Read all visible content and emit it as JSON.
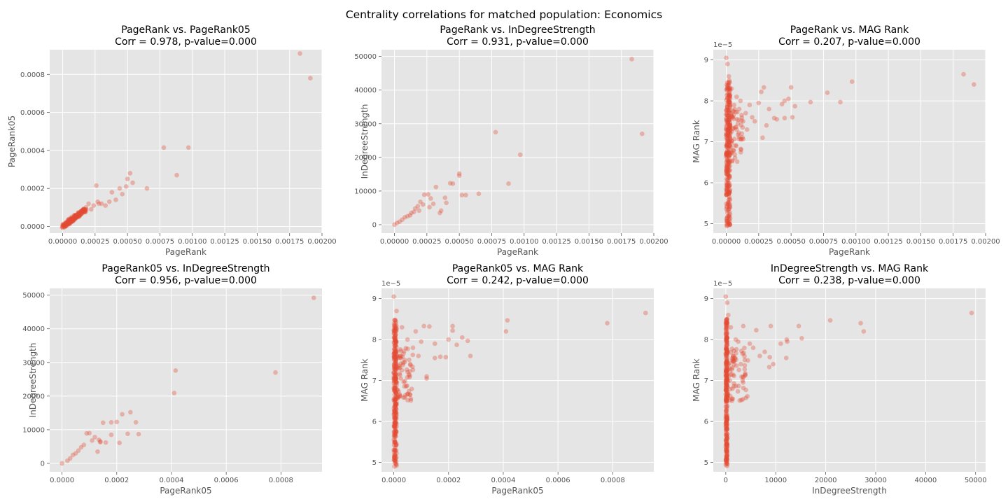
{
  "figure": {
    "title": "Centrality correlations for matched population: Economics"
  },
  "colors": {
    "point": "#e24a33",
    "background": "#e5e5e5",
    "grid": "#ffffff"
  },
  "chart_data": [
    {
      "type": "scatter",
      "title_line1": "PageRank vs. PageRank05",
      "title_line2": "Corr = 0.978, p-value=0.000",
      "xlabel": "PageRank",
      "ylabel": "PageRank05",
      "xlim": [
        -0.0001,
        0.002
      ],
      "ylim": [
        -3.5e-05,
        0.00093
      ],
      "xticks": [
        0,
        0.00025,
        0.0005,
        0.00075,
        0.001,
        0.00125,
        0.0015,
        0.00175,
        0.002
      ],
      "xtick_labels": [
        "0.00000",
        "0.00025",
        "0.00050",
        "0.00075",
        "0.00100",
        "0.00125",
        "0.00150",
        "0.00175",
        "0.00200"
      ],
      "yticks": [
        0,
        0.0002,
        0.0004,
        0.0006,
        0.0008
      ],
      "ytick_labels": [
        "0.0000",
        "0.0002",
        "0.0004",
        "0.0006",
        "0.0008"
      ],
      "y_offset_label": "",
      "points": [
        [
          0.00183,
          0.00091
        ],
        [
          0.00191,
          0.00078
        ],
        [
          0.00078,
          0.000415
        ],
        [
          0.00097,
          0.000415
        ],
        [
          0.00088,
          0.00027
        ],
        [
          0.00065,
          0.0002
        ],
        [
          0.00052,
          0.00028
        ],
        [
          0.00054,
          0.00023
        ],
        [
          0.0005,
          0.00025
        ],
        [
          0.00049,
          0.00021
        ],
        [
          0.00046,
          0.00017
        ],
        [
          0.00044,
          0.0002
        ],
        [
          0.00041,
          0.00014
        ],
        [
          0.00038,
          0.00018
        ],
        [
          0.00036,
          0.00013
        ],
        [
          0.00033,
          0.00011
        ],
        [
          0.0003,
          0.00012
        ],
        [
          0.00026,
          0.000215
        ],
        [
          0.00027,
          0.00013
        ],
        [
          0.00028,
          0.00012
        ],
        [
          0.00024,
          0.00011
        ],
        [
          0.00022,
          9e-05
        ],
        [
          0.0002,
          0.00012
        ],
        [
          0.00018,
          0.0001
        ],
        [
          0.00016,
          9e-05
        ],
        [
          0.00015,
          7e-05
        ],
        [
          0.00014,
          8e-05
        ],
        [
          0.00013,
          6e-05
        ],
        [
          0.00012,
          7e-05
        ],
        [
          0.0001,
          5e-05
        ],
        [
          9e-05,
          6e-05
        ],
        [
          8e-05,
          4e-05
        ],
        [
          7e-05,
          5e-05
        ],
        [
          6e-05,
          3e-05
        ],
        [
          5e-05,
          4e-05
        ],
        [
          4e-05,
          2e-05
        ],
        [
          3e-05,
          2e-05
        ],
        [
          2e-05,
          1e-05
        ],
        [
          1e-05,
          5e-06
        ],
        [
          0,
          0
        ]
      ],
      "cluster": {
        "x0": 0,
        "x1": 0.00018,
        "y0": 0,
        "y1": 9e-05,
        "spread": 1.2e-05,
        "n": 150
      }
    },
    {
      "type": "scatter",
      "title_line1": "PageRank vs. InDegreeStrength",
      "title_line2": "Corr = 0.931, p-value=0.000",
      "xlabel": "PageRank",
      "ylabel": "InDegreeStrength",
      "xlim": [
        -0.0001,
        0.002
      ],
      "ylim": [
        -2500,
        52000
      ],
      "xticks": [
        0,
        0.00025,
        0.0005,
        0.00075,
        0.001,
        0.00125,
        0.0015,
        0.00175,
        0.002
      ],
      "xtick_labels": [
        "0.00000",
        "0.00025",
        "0.00050",
        "0.00075",
        "0.00100",
        "0.00125",
        "0.00150",
        "0.00175",
        "0.00200"
      ],
      "yticks": [
        0,
        10000,
        20000,
        30000,
        40000,
        50000
      ],
      "ytick_labels": [
        "0",
        "10000",
        "20000",
        "30000",
        "40000",
        "50000"
      ],
      "y_offset_label": "",
      "points": [
        [
          0.00183,
          49200
        ],
        [
          0.00191,
          27000
        ],
        [
          0.00078,
          27500
        ],
        [
          0.00097,
          20800
        ],
        [
          0.00088,
          12200
        ],
        [
          0.00065,
          9200
        ],
        [
          0.0005,
          15200
        ],
        [
          0.0005,
          14600
        ],
        [
          0.00045,
          12200
        ],
        [
          0.00043,
          12300
        ],
        [
          0.00052,
          8800
        ],
        [
          0.00055,
          8800
        ],
        [
          0.0004,
          6500
        ],
        [
          0.00039,
          8000
        ],
        [
          0.00036,
          4200
        ],
        [
          0.00032,
          11200
        ],
        [
          0.0003,
          6200
        ],
        [
          0.00028,
          7800
        ],
        [
          0.00026,
          9000
        ],
        [
          0.00023,
          8900
        ],
        [
          0.00022,
          6000
        ],
        [
          0.0002,
          6800
        ],
        [
          0.00018,
          5500
        ],
        [
          0.00016,
          4800
        ],
        [
          0.00015,
          3800
        ],
        [
          0.00013,
          3500
        ],
        [
          0.00012,
          2800
        ],
        [
          0.0001,
          2500
        ],
        [
          8e-05,
          2200
        ],
        [
          6e-05,
          1500
        ],
        [
          4e-05,
          900
        ],
        [
          2e-05,
          500
        ],
        [
          0,
          0
        ],
        [
          0.00035,
          3500
        ],
        [
          0.00027,
          5200
        ],
        [
          0.00019,
          4200
        ]
      ],
      "cluster": {
        "x0": 0,
        "x1": 0.00018,
        "y0": 0,
        "y1": 4500,
        "spread": 700,
        "n": 150
      }
    },
    {
      "type": "scatter",
      "title_line1": "PageRank vs. MAG Rank",
      "title_line2": "Corr = 0.207, p-value=0.000",
      "xlabel": "PageRank",
      "ylabel": "MAG Rank",
      "xlim": [
        -0.0001,
        0.002
      ],
      "ylim": [
        4.77,
        9.25
      ],
      "xticks": [
        0,
        0.00025,
        0.0005,
        0.00075,
        0.001,
        0.00125,
        0.0015,
        0.00175,
        0.002
      ],
      "xtick_labels": [
        "0.00000",
        "0.00025",
        "0.00050",
        "0.00075",
        "0.00100",
        "0.00125",
        "0.00150",
        "0.00175",
        "0.00200"
      ],
      "yticks": [
        5,
        6,
        7,
        8,
        9
      ],
      "ytick_labels": [
        "5",
        "6",
        "7",
        "8",
        "9"
      ],
      "y_offset_label": "1e−5",
      "points": [
        [
          0.00183,
          8.65
        ],
        [
          0.00191,
          8.4
        ],
        [
          0.00097,
          8.47
        ],
        [
          0.00088,
          7.97
        ],
        [
          0.00078,
          8.2
        ],
        [
          0.00065,
          7.97
        ],
        [
          0.00053,
          7.87
        ],
        [
          0.0005,
          8.33
        ],
        [
          0.00048,
          8.05
        ],
        [
          0.00045,
          8.0
        ],
        [
          0.00043,
          7.92
        ],
        [
          0.00045,
          7.58
        ],
        [
          0.00051,
          7.6
        ],
        [
          0.00039,
          7.55
        ],
        [
          0.00037,
          7.58
        ],
        [
          0.00033,
          7.8
        ],
        [
          0.00031,
          7.4
        ],
        [
          0.00029,
          8.33
        ],
        [
          0.00027,
          8.22
        ],
        [
          0.00025,
          7.95
        ],
        [
          0.00022,
          7.5
        ],
        [
          0.00028,
          7.1
        ],
        [
          0.0002,
          7.6
        ],
        [
          0.00018,
          7.9
        ],
        [
          0.00016,
          7.3
        ],
        [
          0.00015,
          7.7
        ],
        [
          0.00013,
          7.5
        ],
        [
          0.00012,
          7.2
        ],
        [
          0.00011,
          8.0
        ],
        [
          0.0001,
          7.8
        ],
        [
          9e-05,
          7.45
        ],
        [
          8e-05,
          8.1
        ],
        [
          7e-05,
          7.35
        ],
        [
          6e-05,
          7.9
        ],
        [
          5e-05,
          7.6
        ],
        [
          4e-05,
          8.3
        ],
        [
          3e-05,
          7.2
        ],
        [
          2e-05,
          8.6
        ],
        [
          1e-05,
          8.9
        ],
        [
          0,
          9.05
        ]
      ],
      "cluster": {
        "x0": 0,
        "x1": 3e-05,
        "y0": 4.9,
        "y1": 8.5,
        "spread": 6e-06,
        "n": 260,
        "fan": {
          "x1": 0.00013,
          "y0": 6.5,
          "y1": 7.8,
          "n": 90
        }
      }
    },
    {
      "type": "scatter",
      "title_line1": "PageRank05 vs. InDegreeStrength",
      "title_line2": "Corr = 0.956, p-value=0.000",
      "xlabel": "PageRank05",
      "ylabel": "InDegreeStrength",
      "xlim": [
        -4.5e-05,
        0.00095
      ],
      "ylim": [
        -2500,
        52000
      ],
      "xticks": [
        0,
        0.0002,
        0.0004,
        0.0006,
        0.0008
      ],
      "xtick_labels": [
        "0.0000",
        "0.0002",
        "0.0004",
        "0.0006",
        "0.0008"
      ],
      "yticks": [
        0,
        10000,
        20000,
        30000,
        40000,
        50000
      ],
      "ytick_labels": [
        "0",
        "10000",
        "20000",
        "30000",
        "40000",
        "50000"
      ],
      "y_offset_label": "",
      "points": [
        [
          0.00092,
          49200
        ],
        [
          0.00078,
          27000
        ],
        [
          0.000415,
          27600
        ],
        [
          0.00041,
          20900
        ],
        [
          0.00025,
          15200
        ],
        [
          0.00022,
          14600
        ],
        [
          0.00027,
          12200
        ],
        [
          0.0002,
          12300
        ],
        [
          0.00018,
          12200
        ],
        [
          0.00015,
          12100
        ],
        [
          0.00024,
          8800
        ],
        [
          0.00028,
          8700
        ],
        [
          0.00021,
          6100
        ],
        [
          0.00018,
          8500
        ],
        [
          0.00016,
          6200
        ],
        [
          0.00014,
          6300
        ],
        [
          0.00013,
          3500
        ],
        [
          0.00012,
          7800
        ],
        [
          0.0001,
          9000
        ],
        [
          9e-05,
          8900
        ],
        [
          0.00011,
          6800
        ],
        [
          8e-05,
          5500
        ],
        [
          7e-05,
          4800
        ],
        [
          6e-05,
          3800
        ],
        [
          5e-05,
          3000
        ],
        [
          4e-05,
          2500
        ],
        [
          3e-05,
          1500
        ],
        [
          2e-05,
          800
        ],
        [
          0,
          0
        ],
        [
          0.000135,
          7000
        ],
        [
          0.00014,
          6500
        ]
      ],
      "cluster": {
        "x0": 0,
        "x1": 9e-05,
        "y0": 0,
        "y1": 5000,
        "spread": 700,
        "n": 150
      }
    },
    {
      "type": "scatter",
      "title_line1": "PageRank05 vs. MAG Rank",
      "title_line2": "Corr = 0.242, p-value=0.000",
      "xlabel": "PageRank05",
      "ylabel": "MAG Rank",
      "xlim": [
        -4.5e-05,
        0.00095
      ],
      "ylim": [
        4.77,
        9.25
      ],
      "xticks": [
        0,
        0.0002,
        0.0004,
        0.0006,
        0.0008
      ],
      "xtick_labels": [
        "0.0000",
        "0.0002",
        "0.0004",
        "0.0006",
        "0.0008"
      ],
      "yticks": [
        5,
        6,
        7,
        8,
        9
      ],
      "ytick_labels": [
        "5",
        "6",
        "7",
        "8",
        "9"
      ],
      "y_offset_label": "1e−5",
      "points": [
        [
          0.00092,
          8.65
        ],
        [
          0.00078,
          8.4
        ],
        [
          0.000415,
          8.47
        ],
        [
          0.00041,
          8.2
        ],
        [
          0.00028,
          7.6
        ],
        [
          0.00027,
          7.97
        ],
        [
          0.00025,
          8.05
        ],
        [
          0.00023,
          7.87
        ],
        [
          0.000215,
          8.33
        ],
        [
          0.000215,
          8.22
        ],
        [
          0.0002,
          8.0
        ],
        [
          0.00019,
          7.57
        ],
        [
          0.00017,
          7.58
        ],
        [
          0.00015,
          7.9
        ],
        [
          0.00015,
          7.55
        ],
        [
          0.00013,
          8.32
        ],
        [
          0.00012,
          7.1
        ],
        [
          0.00011,
          8.33
        ],
        [
          0.0001,
          7.95
        ],
        [
          9e-05,
          7.6
        ],
        [
          8e-05,
          8.2
        ],
        [
          7e-05,
          7.8
        ],
        [
          6e-05,
          7.4
        ],
        [
          5e-05,
          8.0
        ],
        [
          4e-05,
          7.5
        ],
        [
          3e-05,
          8.3
        ],
        [
          2e-05,
          7.3
        ],
        [
          1e-05,
          8.7
        ],
        [
          0,
          9.05
        ],
        [
          0.00012,
          7.05
        ]
      ],
      "cluster": {
        "x0": 0,
        "x1": 1e-05,
        "y0": 4.9,
        "y1": 8.5,
        "spread": 2.5e-06,
        "n": 260,
        "fan": {
          "x1": 7e-05,
          "y0": 6.5,
          "y1": 7.8,
          "n": 90
        }
      }
    },
    {
      "type": "scatter",
      "title_line1": "InDegreeStrength vs. MAG Rank",
      "title_line2": "Corr = 0.238, p-value=0.000",
      "xlabel": "InDegreeStrength",
      "ylabel": "MAG Rank",
      "xlim": [
        -2500,
        52000
      ],
      "ylim": [
        4.77,
        9.25
      ],
      "xticks": [
        0,
        10000,
        20000,
        30000,
        40000,
        50000
      ],
      "xtick_labels": [
        "0",
        "10000",
        "20000",
        "30000",
        "40000",
        "50000"
      ],
      "yticks": [
        5,
        6,
        7,
        8,
        9
      ],
      "ytick_labels": [
        "5",
        "6",
        "7",
        "8",
        "9"
      ],
      "y_offset_label": "1e−5",
      "points": [
        [
          49200,
          8.65
        ],
        [
          27000,
          8.4
        ],
        [
          27600,
          8.2
        ],
        [
          20900,
          8.47
        ],
        [
          15200,
          8.03
        ],
        [
          14600,
          8.33
        ],
        [
          12200,
          8.0
        ],
        [
          12300,
          7.95
        ],
        [
          12100,
          7.55
        ],
        [
          9000,
          8.33
        ],
        [
          8800,
          7.57
        ],
        [
          8700,
          7.33
        ],
        [
          6800,
          7.6
        ],
        [
          6100,
          8.23
        ],
        [
          5500,
          7.8
        ],
        [
          4800,
          7.9
        ],
        [
          3800,
          7.5
        ],
        [
          3500,
          8.33
        ],
        [
          3000,
          7.4
        ],
        [
          2500,
          7.95
        ],
        [
          2000,
          8.0
        ],
        [
          1500,
          7.6
        ],
        [
          1000,
          8.3
        ],
        [
          800,
          7.3
        ],
        [
          500,
          8.6
        ],
        [
          300,
          8.9
        ],
        [
          0,
          9.05
        ],
        [
          9500,
          7.4
        ],
        [
          7800,
          7.7
        ],
        [
          11000,
          7.9
        ]
      ],
      "cluster": {
        "x0": 0,
        "x1": 300,
        "y0": 4.9,
        "y1": 8.5,
        "spread": 60,
        "n": 260,
        "fan": {
          "x1": 4500,
          "y0": 6.5,
          "y1": 7.8,
          "n": 90
        }
      }
    }
  ]
}
